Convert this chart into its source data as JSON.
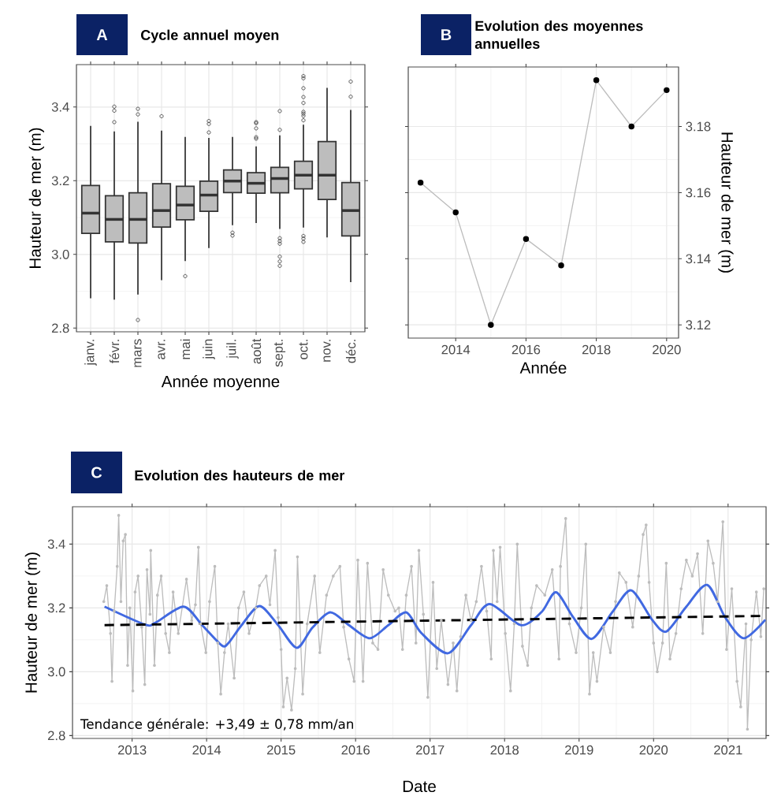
{
  "chart_data": [
    {
      "type": "box",
      "title": "Cycle annuel moyen",
      "annotations": [
        "A"
      ],
      "xlabel": "Année moyenne",
      "ylabel": "Hauteur de mer (m)",
      "categories": [
        "janv.",
        "févr.",
        "mars",
        "avr.",
        "mai",
        "juin",
        "juil.",
        "août",
        "sept.",
        "oct.",
        "nov.",
        "déc."
      ],
      "color": "#bdbdbd",
      "grid": true,
      "ylim": [
        2.79,
        3.515
      ],
      "yticks": [
        2.8,
        {
          "value": 3.0,
          "label": "3.0"
        },
        3.2,
        3.4
      ],
      "boxes": [
        {
          "low": 2.881,
          "q1": 3.057,
          "median": 3.112,
          "q3": 3.187,
          "high": 3.349
        },
        {
          "low": 2.877,
          "q1": 3.034,
          "median": 3.095,
          "q3": 3.159,
          "high": 3.334,
          "outliers": [
            3.401,
            3.39,
            3.359
          ]
        },
        {
          "low": 2.891,
          "q1": 3.031,
          "median": 3.095,
          "q3": 3.167,
          "high": 3.36,
          "outliers": [
            3.395,
            3.38,
            2.822
          ]
        },
        {
          "low": 2.93,
          "q1": 3.074,
          "median": 3.119,
          "q3": 3.192,
          "high": 3.336,
          "outliers": [
            3.375
          ]
        },
        {
          "low": 2.982,
          "q1": 3.094,
          "median": 3.134,
          "q3": 3.185,
          "high": 3.319,
          "outliers": [
            2.941
          ]
        },
        {
          "low": 3.017,
          "q1": 3.117,
          "median": 3.161,
          "q3": 3.199,
          "high": 3.316,
          "outliers": [
            3.362,
            3.354,
            3.331
          ]
        },
        {
          "low": 3.079,
          "q1": 3.168,
          "median": 3.199,
          "q3": 3.229,
          "high": 3.319,
          "outliers": [
            3.059,
            3.051
          ]
        },
        {
          "low": 3.085,
          "q1": 3.166,
          "median": 3.193,
          "q3": 3.222,
          "high": 3.293,
          "outliers": [
            3.359,
            3.356,
            3.342,
            3.318,
            3.314
          ]
        },
        {
          "low": 3.069,
          "q1": 3.167,
          "median": 3.206,
          "q3": 3.236,
          "high": 3.323,
          "outliers": [
            3.389,
            3.338,
            3.044,
            3.036,
            3.029,
            2.994,
            2.981,
            2.969
          ]
        },
        {
          "low": 3.073,
          "q1": 3.178,
          "median": 3.215,
          "q3": 3.253,
          "high": 3.352,
          "outliers": [
            3.484,
            3.478,
            3.451,
            3.427,
            3.411,
            3.387,
            3.382,
            3.376,
            3.364,
            3.05,
            3.043,
            3.034
          ]
        },
        {
          "low": 3.046,
          "q1": 3.149,
          "median": 3.215,
          "q3": 3.306,
          "high": 3.452
        },
        {
          "low": 2.925,
          "q1": 3.05,
          "median": 3.119,
          "q3": 3.195,
          "high": 3.392,
          "outliers": [
            3.469,
            3.428
          ]
        }
      ]
    },
    {
      "type": "line",
      "title": "Evolution des moyennes annuelles",
      "annotations": [
        "B"
      ],
      "xlabel": "Année",
      "y2label": "Hauteur de mer (m)",
      "grid": true,
      "marker": "circle",
      "xlim": [
        2012.65,
        2020.34
      ],
      "xticks": [
        2014,
        2016,
        2018,
        2020
      ],
      "y2lim": [
        3.116,
        3.198
      ],
      "y2ticks": [
        3.12,
        3.14,
        3.16,
        3.18
      ],
      "series": [
        {
          "color": "#bdbdbd",
          "axis": "y2",
          "x": [
            2013,
            2014,
            2015,
            2016,
            2017,
            2018,
            2019,
            2020
          ],
          "values": [
            3.163,
            3.154,
            3.12,
            3.146,
            3.138,
            3.194,
            3.18,
            3.191
          ]
        }
      ]
    },
    {
      "type": "line",
      "title": "Evolution des hauteurs de mer",
      "annotations": [
        "C",
        "Tendance générale: +3,49  ±  0,78 mm/an"
      ],
      "xlabel": "Date",
      "ylabel": "Hauteur de mer (m)",
      "grid": true,
      "xlim": [
        2012.2,
        2021.51
      ],
      "xticks": [
        2013,
        2014,
        2015,
        2016,
        2017,
        2018,
        2019,
        2020,
        2021
      ],
      "ylim": [
        2.791,
        3.517
      ],
      "yticks": [
        2.8,
        {
          "value": 3.0,
          "label": "3.0"
        },
        3.2,
        3.4
      ],
      "series": [
        {
          "color": "#bdbdbd",
          "marker": "circle",
          "x": [
            2012.62,
            2012.66,
            2012.71,
            2012.73,
            2012.76,
            2012.8,
            2012.82,
            2012.85,
            2012.88,
            2012.91,
            2012.94,
            2012.97,
            2013.01,
            2013.04,
            2013.08,
            2013.13,
            2013.17,
            2013.2,
            2013.24,
            2013.25,
            2013.3,
            2013.34,
            2013.39,
            2013.45,
            2013.5,
            2013.55,
            2013.62,
            2013.73,
            2013.8,
            2013.85,
            2013.89,
            2013.92,
            2013.99,
            2014.04,
            2014.11,
            2014.15,
            2014.19,
            2014.24,
            2014.29,
            2014.37,
            2014.43,
            2014.5,
            2014.57,
            2014.66,
            2014.71,
            2014.8,
            2014.85,
            2014.92,
            2014.96,
            2015.0,
            2015.03,
            2015.08,
            2015.14,
            2015.19,
            2015.22,
            2015.29,
            2015.35,
            2015.45,
            2015.52,
            2015.61,
            2015.7,
            2015.79,
            2015.84,
            2015.91,
            2015.98,
            2016.03,
            2016.1,
            2016.16,
            2016.23,
            2016.3,
            2016.37,
            2016.44,
            2016.53,
            2016.58,
            2016.63,
            2016.68,
            2016.75,
            2016.81,
            2016.85,
            2016.91,
            2016.97,
            2017.04,
            2017.09,
            2017.15,
            2017.24,
            2017.31,
            2017.36,
            2017.41,
            2017.48,
            2017.55,
            2017.62,
            2017.69,
            2017.76,
            2017.82,
            2017.85,
            2017.9,
            2017.94,
            2018.01,
            2018.08,
            2018.13,
            2018.17,
            2018.24,
            2018.31,
            2018.36,
            2018.43,
            2018.54,
            2018.64,
            2018.73,
            2018.75,
            2018.82,
            2018.87,
            2018.96,
            2019.03,
            2019.09,
            2019.14,
            2019.19,
            2019.24,
            2019.33,
            2019.42,
            2019.49,
            2019.54,
            2019.63,
            2019.72,
            2019.8,
            2019.86,
            2019.9,
            2019.94,
            2020.0,
            2020.05,
            2020.12,
            2020.17,
            2020.22,
            2020.3,
            2020.37,
            2020.44,
            2020.52,
            2020.59,
            2020.66,
            2020.73,
            2020.8,
            2020.86,
            2020.93,
            2020.98,
            2021.05,
            2021.12,
            2021.17,
            2021.24,
            2021.26,
            2021.31,
            2021.38,
            2021.44,
            2021.48
          ],
          "values": [
            3.22,
            3.27,
            3.12,
            2.97,
            3.19,
            3.33,
            3.49,
            3.22,
            3.41,
            3.43,
            3.02,
            3.2,
            2.94,
            3.25,
            3.3,
            3.14,
            2.96,
            3.32,
            3.18,
            3.38,
            3.02,
            3.24,
            3.3,
            3.12,
            3.06,
            3.25,
            3.12,
            3.29,
            3.16,
            3.21,
            3.39,
            3.15,
            3.06,
            3.22,
            3.33,
            3.09,
            2.93,
            3.06,
            3.15,
            2.98,
            3.2,
            3.25,
            3.12,
            3.2,
            3.27,
            3.3,
            3.21,
            3.38,
            3.17,
            3.07,
            2.89,
            2.98,
            2.88,
            3.01,
            3.36,
            2.93,
            3.15,
            3.3,
            3.06,
            3.24,
            3.3,
            3.33,
            3.14,
            3.04,
            2.97,
            3.35,
            2.97,
            3.34,
            3.09,
            3.07,
            3.32,
            3.24,
            3.19,
            3.2,
            3.07,
            3.24,
            3.33,
            3.09,
            3.38,
            3.18,
            2.92,
            3.28,
            3.01,
            3.16,
            2.96,
            3.09,
            2.94,
            3.11,
            3.24,
            3.16,
            3.22,
            3.33,
            3.19,
            3.04,
            3.38,
            3.22,
            3.39,
            3.12,
            2.94,
            3.15,
            3.4,
            3.08,
            3.02,
            3.2,
            3.27,
            3.24,
            3.32,
            3.04,
            3.33,
            3.48,
            3.15,
            3.06,
            3.2,
            3.4,
            2.93,
            3.06,
            2.97,
            3.14,
            3.06,
            3.22,
            3.31,
            3.28,
            3.14,
            3.3,
            3.43,
            3.46,
            3.28,
            3.09,
            3.0,
            3.09,
            3.34,
            3.04,
            3.12,
            3.26,
            3.35,
            3.3,
            3.37,
            3.12,
            3.41,
            3.34,
            3.22,
            3.47,
            3.07,
            3.26,
            2.97,
            2.89,
            3.15,
            2.82,
            3.1,
            3.25,
            3.11,
            3.26
          ]
        },
        {
          "color": "#4169e1",
          "marker": "none",
          "x": [
            2012.63,
            2013.17,
            2013.31,
            2013.69,
            2013.94,
            2014.2,
            2014.29,
            2014.47,
            2014.71,
            2014.96,
            2015.21,
            2015.42,
            2015.66,
            2015.91,
            2016.19,
            2016.44,
            2016.68,
            2016.88,
            2017.24,
            2017.55,
            2017.8,
            2018.22,
            2018.5,
            2018.69,
            2018.92,
            2019.17,
            2019.45,
            2019.7,
            2019.98,
            2020.17,
            2020.44,
            2020.72,
            2020.96,
            2021.21,
            2021.5
          ],
          "values": [
            3.204,
            3.148,
            3.153,
            3.204,
            3.146,
            3.083,
            3.089,
            3.146,
            3.206,
            3.146,
            3.075,
            3.138,
            3.186,
            3.146,
            3.105,
            3.146,
            3.186,
            3.122,
            3.058,
            3.146,
            3.212,
            3.146,
            3.188,
            3.249,
            3.171,
            3.103,
            3.188,
            3.255,
            3.163,
            3.126,
            3.204,
            3.272,
            3.171,
            3.105,
            3.163
          ]
        },
        {
          "color": "#000000",
          "marker": "none",
          "line_style": "dashed",
          "x": [
            2012.63,
            2021.51
          ],
          "values": [
            3.146,
            3.175
          ]
        }
      ]
    }
  ]
}
